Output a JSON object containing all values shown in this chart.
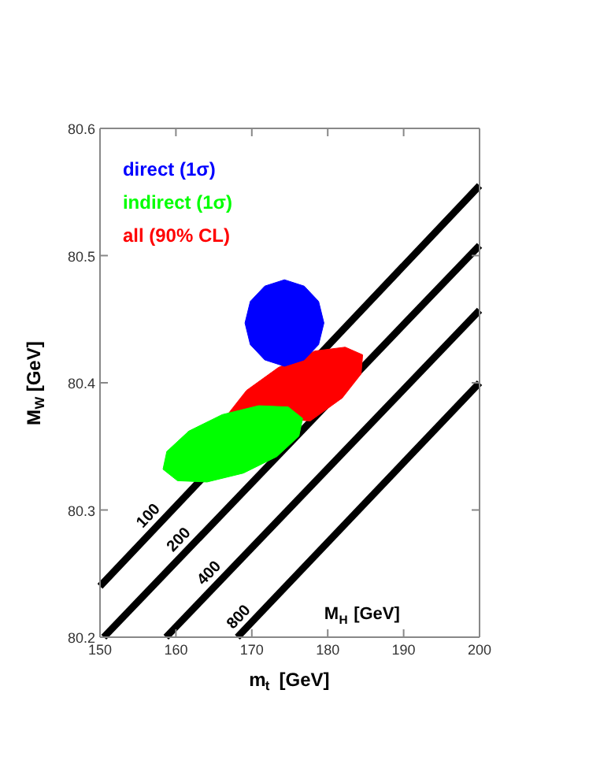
{
  "chart_data": {
    "type": "line",
    "xlabel": "m$_{t}$ [GeV]",
    "ylabel": "M$_{W}$ [GeV]",
    "xlim": [
      150,
      200
    ],
    "ylim": [
      80.2,
      80.6
    ],
    "xticks": [
      150,
      160,
      170,
      180,
      190,
      200
    ],
    "yticks": [
      80.2,
      80.3,
      80.4,
      80.5,
      80.6
    ],
    "grid": false,
    "legend": "top left",
    "marker": "none",
    "line_style": "solid",
    "series": [
      {
        "color": "#000000",
        "x": [
          150,
          200
        ],
        "values": [
          80.24,
          80.555
        ]
      },
      {
        "color": "#000000",
        "x": [
          150.5,
          200
        ],
        "values": [
          80.2,
          80.508
        ]
      },
      {
        "color": "#000000",
        "x": [
          158.7,
          200
        ],
        "values": [
          80.2,
          80.457
        ]
      },
      {
        "color": "#000000",
        "x": [
          168.1,
          200
        ],
        "values": [
          80.2,
          80.4
        ]
      },
      {
        "type": "area",
        "name": "direct (1σ)",
        "color": "#0000ff",
        "x": [
          179.5,
          178.8,
          176.9,
          174.3,
          171.7,
          169.8,
          169.1,
          169.8,
          171.7,
          174.3,
          176.9,
          178.8
        ],
        "values": [
          80.447,
          80.464,
          80.476,
          80.481,
          80.476,
          80.464,
          80.447,
          80.43,
          80.418,
          80.413,
          80.418,
          80.43
        ]
      },
      {
        "type": "area",
        "name": "indirect (1σ)",
        "color": "#00ff00",
        "x": [
          176.7,
          176.2,
          173.3,
          168.9,
          164.1,
          160.2,
          158.3,
          158.8,
          161.7,
          166.1,
          170.9,
          174.8
        ],
        "values": [
          80.372,
          80.358,
          80.342,
          80.329,
          80.322,
          80.323,
          80.332,
          80.346,
          80.362,
          80.375,
          80.382,
          80.381
        ]
      },
      {
        "type": "area",
        "name": "all (90% CL)",
        "color": "#ff0000",
        "x": [
          184.6,
          184.4,
          181.9,
          177.7,
          null,
          null,
          null,
          166.8,
          169.3,
          173.5,
          178.3,
          182.3
        ],
        "values": [
          80.422,
          80.407,
          80.388,
          80.37,
          null,
          null,
          null,
          80.375,
          80.394,
          80.412,
          80.425,
          80.428
        ]
      }
    ],
    "annotations": [
      {
        "text": "100",
        "x": 157.7,
        "y": 80.2885
      },
      {
        "text": "200",
        "x": 161.7,
        "y": 80.2697
      },
      {
        "text": "400",
        "x": 165.7,
        "y": 80.2435
      },
      {
        "text": "800",
        "x": 169.6,
        "y": 80.209
      },
      "M$_{H}$ [GeV]"
    ]
  }
}
